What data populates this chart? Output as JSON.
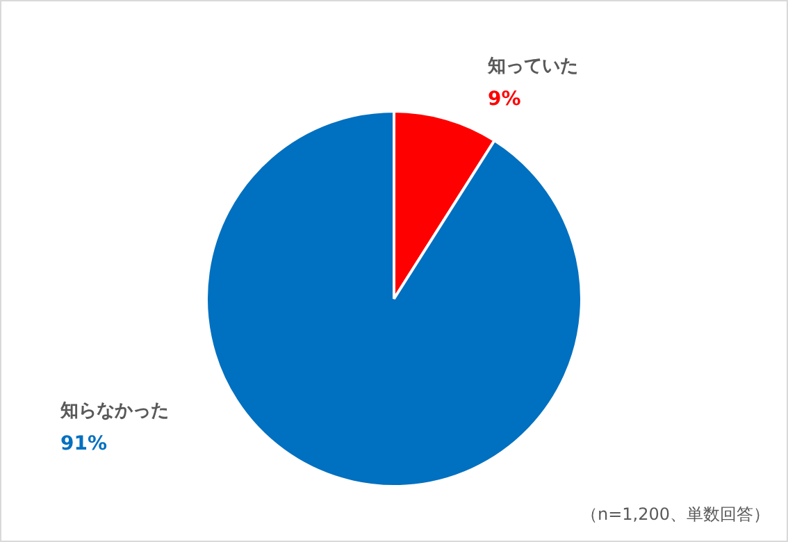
{
  "chart_data": {
    "type": "pie",
    "categories": [
      "知っていた",
      "知らなかった"
    ],
    "values": [
      9,
      91
    ],
    "colors": [
      "#ff0000",
      "#0070c0"
    ],
    "value_labels": [
      "9%",
      "91%"
    ],
    "legend": false,
    "annotations": [
      "（n=1,200、単数回答）"
    ]
  }
}
